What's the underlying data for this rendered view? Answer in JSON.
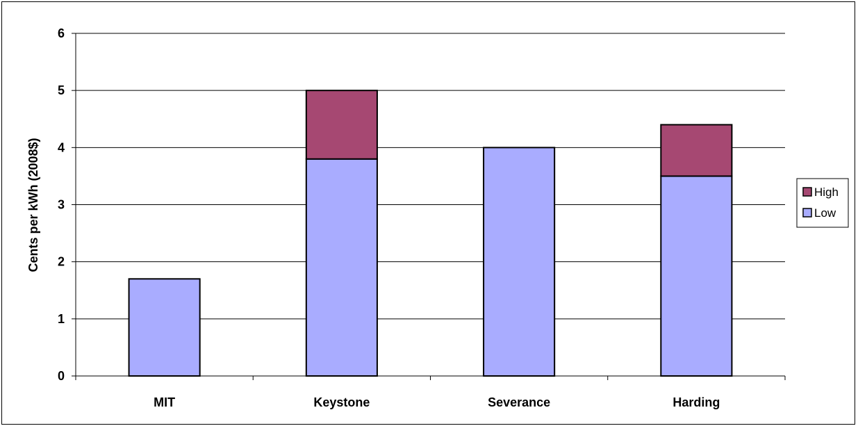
{
  "chart_data": {
    "type": "bar",
    "stacked": true,
    "categories": [
      "MIT",
      "Keystone",
      "Severance",
      "Harding"
    ],
    "series": [
      {
        "name": "Low",
        "values": [
          1.7,
          3.8,
          4.0,
          3.5
        ],
        "color": "#A9ACFF"
      },
      {
        "name": "High",
        "values": [
          0,
          1.2,
          0,
          0.9
        ],
        "color": "#A64872"
      }
    ],
    "ylabel": "Cents per kWh (2008$)",
    "xlabel": "",
    "ylim": [
      0,
      6
    ],
    "yticks": [
      "0",
      "1",
      "2",
      "3",
      "4",
      "5",
      "6"
    ],
    "grid": true,
    "legend": {
      "placement": "right",
      "order": [
        "High",
        "Low"
      ]
    }
  }
}
